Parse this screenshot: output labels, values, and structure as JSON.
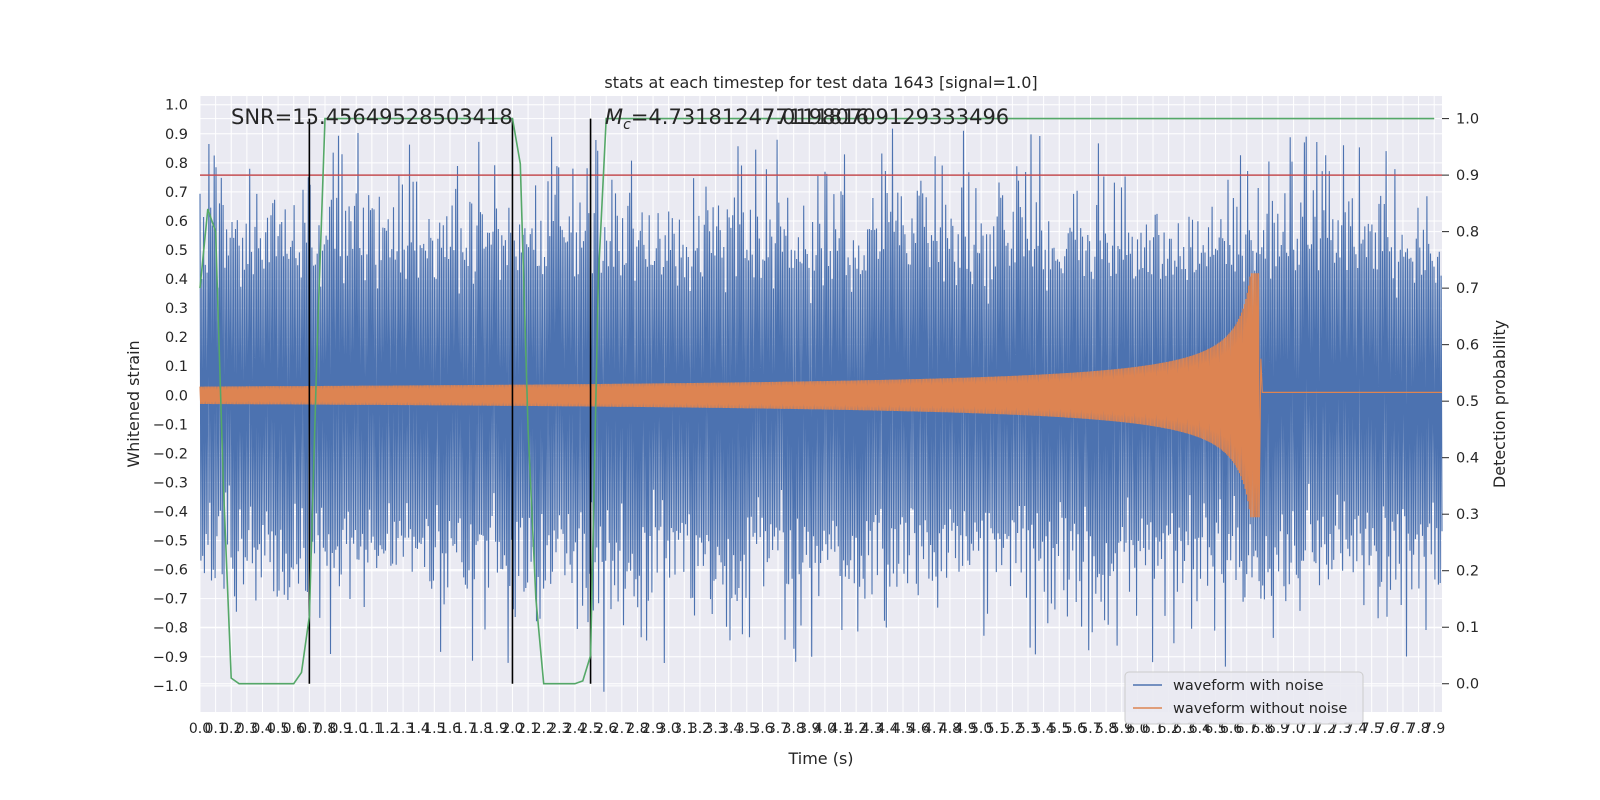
{
  "chart_data": {
    "type": "line",
    "title": "stats at each timestep for test data 1643 [signal=1.0]",
    "xlabel": "Time (s)",
    "ylabel_left": "Whitened strain",
    "ylabel_right": "Detection probability",
    "xlim": [
      0.0,
      7.95
    ],
    "ylim_left": [
      -1.09,
      1.03
    ],
    "ylim_right": [
      -0.05,
      1.04
    ],
    "x_ticks": [
      0.0,
      0.1,
      0.2,
      0.3,
      0.4,
      0.5,
      0.6,
      0.7,
      0.8,
      0.9,
      1.0,
      1.1,
      1.2,
      1.3,
      1.4,
      1.5,
      1.6,
      1.7,
      1.8,
      1.9,
      2.0,
      2.1,
      2.2,
      2.3,
      2.4,
      2.5,
      2.6,
      2.7,
      2.8,
      2.9,
      3.0,
      3.1,
      3.2,
      3.3,
      3.4,
      3.5,
      3.6,
      3.7,
      3.8,
      3.9,
      4.0,
      4.1,
      4.2,
      4.3,
      4.4,
      4.5,
      4.6,
      4.7,
      4.8,
      4.9,
      5.0,
      5.1,
      5.2,
      5.3,
      5.4,
      5.5,
      5.6,
      5.7,
      5.8,
      5.9,
      6.0,
      6.1,
      6.2,
      6.3,
      6.4,
      6.5,
      6.6,
      6.7,
      6.8,
      6.9,
      7.0,
      7.1,
      7.2,
      7.3,
      7.4,
      7.5,
      7.6,
      7.7,
      7.8,
      7.9
    ],
    "y_ticks_left": [
      -1.0,
      -0.9,
      -0.8,
      -0.7,
      -0.6,
      -0.5,
      -0.4,
      -0.3,
      -0.2,
      -0.1,
      0.0,
      0.1,
      0.2,
      0.3,
      0.4,
      0.5,
      0.6,
      0.7,
      0.8,
      0.9,
      1.0
    ],
    "y_ticks_right": [
      0.0,
      0.1,
      0.2,
      0.3,
      0.4,
      0.5,
      0.6,
      0.7,
      0.8,
      0.9,
      1.0
    ],
    "annotations": {
      "snr": "SNR=15.45649528503418",
      "mc_prefix": "M",
      "mc_subscript": "c",
      "mc_value": "=4.731812477111816",
      "overlap_text": "7.01980709129333496"
    },
    "threshold": {
      "value": 0.9,
      "axis": "right",
      "color": "#c44e52"
    },
    "vertical_lines": [
      0.7,
      2.0,
      2.5
    ],
    "legend": {
      "location": "lower-right",
      "entries": [
        {
          "label": "waveform with noise",
          "color": "#4c72b0"
        },
        {
          "label": "waveform without noise",
          "color": "#dd8452"
        }
      ]
    },
    "series": [
      {
        "name": "waveform with noise",
        "axis": "left",
        "color": "#4c72b0",
        "description": "dense noisy strain, typical range about -0.6 to 0.65, peaks near ±0.9",
        "samples": 1400,
        "typical_amplitude": 0.58,
        "peak_extreme": 0.93
      },
      {
        "name": "waveform without noise",
        "axis": "left",
        "color": "#dd8452",
        "description": "chirp growing from amplitude 0.03 at t=0 to peak ~0.42 at merger, then flat ~0.01",
        "start_amplitude": 0.03,
        "merger_time": 6.78,
        "merger_peak": 0.42,
        "merger_trough": -0.39,
        "ringdown_level": 0.01
      },
      {
        "name": "detection probability",
        "axis": "right",
        "color": "#55a868",
        "x": [
          0.0,
          0.05,
          0.1,
          0.15,
          0.2,
          0.25,
          0.3,
          0.4,
          0.5,
          0.6,
          0.65,
          0.7,
          0.75,
          0.8,
          1.0,
          1.2,
          1.4,
          1.6,
          1.8,
          2.0,
          2.05,
          2.1,
          2.15,
          2.2,
          2.3,
          2.4,
          2.45,
          2.5,
          2.55,
          2.6,
          3.0,
          4.0,
          5.0,
          6.0,
          7.0,
          7.9
        ],
        "values": [
          0.7,
          0.84,
          0.8,
          0.35,
          0.01,
          0.0,
          0.0,
          0.0,
          0.0,
          0.0,
          0.02,
          0.12,
          0.6,
          1.0,
          1.0,
          1.0,
          1.0,
          1.0,
          1.0,
          1.0,
          0.92,
          0.45,
          0.15,
          0.0,
          0.0,
          0.0,
          0.005,
          0.05,
          0.72,
          1.0,
          1.0,
          1.0,
          1.0,
          1.0,
          1.0,
          1.0
        ]
      }
    ]
  }
}
